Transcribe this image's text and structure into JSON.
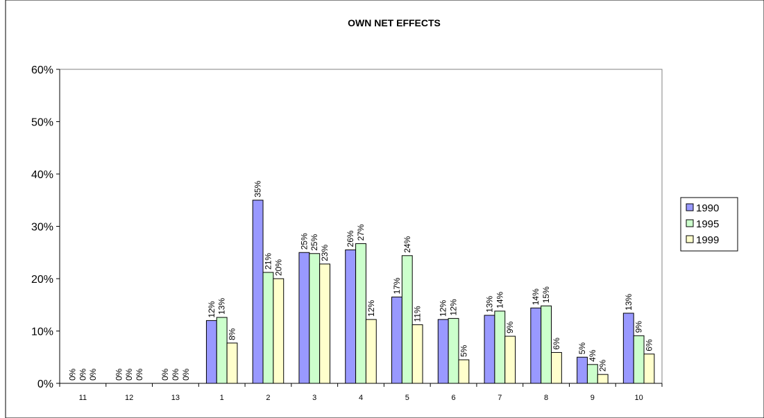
{
  "chart_data": {
    "type": "bar",
    "title": "OWN NET EFFECTS",
    "categories": [
      "11",
      "12",
      "13",
      "1",
      "2",
      "3",
      "4",
      "5",
      "6",
      "7",
      "8",
      "9",
      "10"
    ],
    "series": [
      {
        "name": "1990",
        "color": "#9999ff",
        "values": [
          0,
          0,
          0,
          12,
          35,
          25,
          25.5,
          16.5,
          12.2,
          13,
          14.4,
          5,
          13.4
        ],
        "labels": [
          "0%",
          "0%",
          "0%",
          "12%",
          "35%",
          "25%",
          "26%",
          "17%",
          "12%",
          "13%",
          "14%",
          "5%",
          "13%"
        ]
      },
      {
        "name": "1995",
        "color": "#ccffcc",
        "values": [
          0,
          0,
          0,
          12.6,
          21.2,
          24.8,
          26.7,
          24.4,
          12.4,
          13.8,
          14.8,
          3.6,
          9.1
        ],
        "labels": [
          "0%",
          "0%",
          "0%",
          "13%",
          "21%",
          "25%",
          "27%",
          "24%",
          "12%",
          "14%",
          "15%",
          "4%",
          "9%"
        ]
      },
      {
        "name": "1999",
        "color": "#ffffcc",
        "values": [
          0,
          0,
          0,
          7.7,
          20,
          22.8,
          12.2,
          11.2,
          4.5,
          9,
          5.9,
          1.7,
          5.6
        ],
        "labels": [
          "0%",
          "0%",
          "0%",
          "8%",
          "20%",
          "23%",
          "12%",
          "11%",
          "5%",
          "9%",
          "6%",
          "2%",
          "6%"
        ]
      }
    ],
    "y_ticks": [
      "0%",
      "10%",
      "20%",
      "30%",
      "40%",
      "50%",
      "60%"
    ],
    "ylim": [
      0,
      60
    ],
    "legend_position": "right",
    "grid": false
  }
}
